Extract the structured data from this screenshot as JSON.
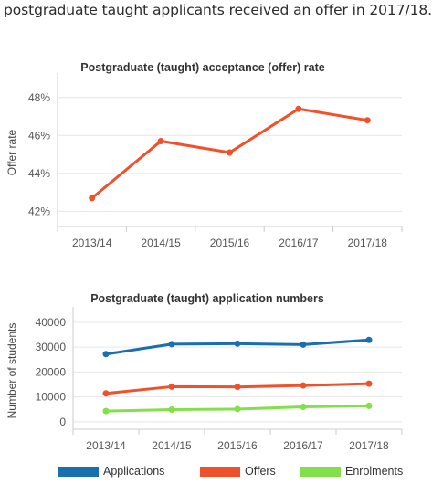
{
  "intro_text": "postgraduate taught applicants received an offer in 2017/18.",
  "chart_data": [
    {
      "type": "line",
      "title": "Postgraduate (taught) acceptance (offer) rate",
      "ylabel": "Offer rate",
      "xlabel": "",
      "categories": [
        "2013/14",
        "2014/15",
        "2015/16",
        "2016/17",
        "2017/18"
      ],
      "series": [
        {
          "values": [
            42.7,
            45.7,
            45.1,
            47.4,
            46.8
          ],
          "color": "#f0512b"
        }
      ],
      "yticks": [
        "42%",
        "44%",
        "46%",
        "48%"
      ],
      "ylim": [
        41.2,
        49
      ],
      "grid": true
    },
    {
      "type": "line",
      "title": "Postgraduate (taught) application numbers",
      "ylabel": "Number of students",
      "xlabel": "",
      "categories": [
        "2013/14",
        "2014/15",
        "2015/16",
        "2016/17",
        "2017/18"
      ],
      "series": [
        {
          "name": "Applications",
          "values": [
            27200,
            31200,
            31400,
            31000,
            32900
          ],
          "color": "#1a6faf"
        },
        {
          "name": "Offers",
          "values": [
            11400,
            14100,
            14000,
            14600,
            15300
          ],
          "color": "#f0512b"
        },
        {
          "name": "Enrolments",
          "values": [
            4300,
            4900,
            5100,
            6000,
            6400
          ],
          "color": "#82e04a"
        }
      ],
      "yticks": [
        "0",
        "10000",
        "20000",
        "30000",
        "40000"
      ],
      "ylim": [
        -3000,
        44000
      ],
      "grid": true,
      "legend": "bottom"
    }
  ]
}
